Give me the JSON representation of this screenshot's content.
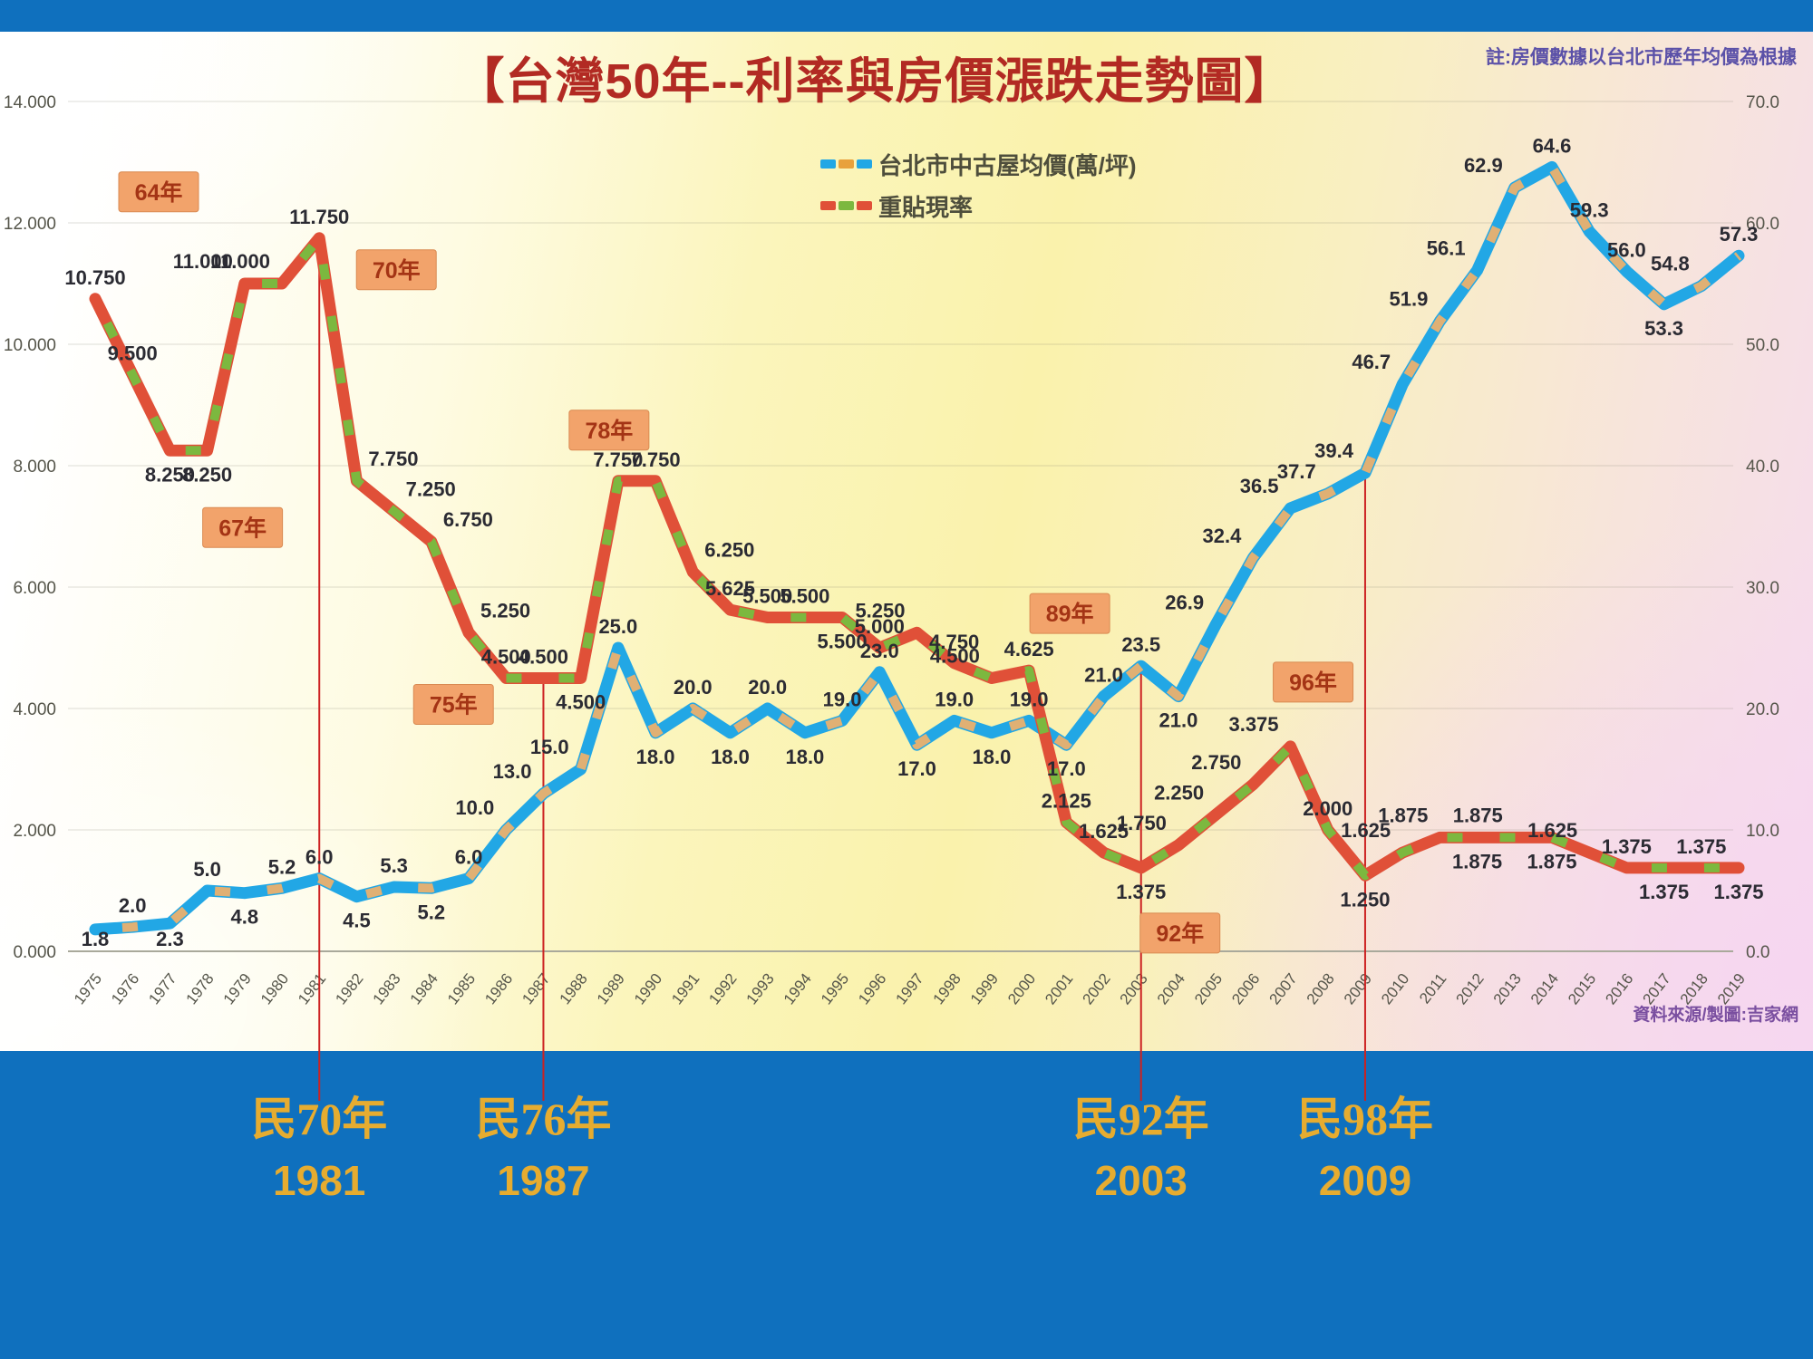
{
  "header": {
    "title": "【台灣50年--利率與房價漲跌走勢圖】",
    "top_right_note": "註:房價數據以台北市歷年均價為根據",
    "source_note": "資料來源/製圖:吉家網"
  },
  "legend": [
    {
      "label": "台北市中古屋均價(萬/坪)",
      "colors": [
        "#22A7E5",
        "#E8A13C",
        "#22A7E5"
      ]
    },
    {
      "label": "重貼現率",
      "colors": [
        "#E05038",
        "#7CB83F",
        "#E05038"
      ]
    }
  ],
  "chart_data": {
    "type": "line",
    "title": "【台灣50年--利率與房價漲跌走勢圖】",
    "x": [
      1975,
      1976,
      1977,
      1978,
      1979,
      1980,
      1981,
      1982,
      1983,
      1984,
      1985,
      1986,
      1987,
      1988,
      1989,
      1990,
      1991,
      1992,
      1993,
      1994,
      1995,
      1996,
      1997,
      1998,
      1999,
      2000,
      2001,
      2002,
      2003,
      2004,
      2005,
      2006,
      2007,
      2008,
      2009,
      2010,
      2011,
      2012,
      2013,
      2014,
      2015,
      2016,
      2017,
      2018,
      2019
    ],
    "axis_left": {
      "ticks": [
        "0.000",
        "2.000",
        "4.000",
        "6.000",
        "8.000",
        "10.000",
        "12.000",
        "14.000"
      ],
      "range": [
        0,
        14
      ]
    },
    "axis_right": {
      "ticks": [
        "0.0",
        "10.0",
        "20.0",
        "30.0",
        "40.0",
        "50.0",
        "60.0",
        "70.0"
      ],
      "range": [
        0,
        70
      ]
    },
    "grid": true,
    "legend_position": "top-center",
    "series": [
      {
        "id": "price",
        "name": "台北市中古屋均價(萬/坪)",
        "axis": "right",
        "color": "#22A7E5",
        "dash_color": "#E0B074",
        "values": [
          1.8,
          2.0,
          2.3,
          5.0,
          4.8,
          5.2,
          6.0,
          4.5,
          5.3,
          5.2,
          6.0,
          10.0,
          13.0,
          15.0,
          25.0,
          18.0,
          20.0,
          18.0,
          20.0,
          18.0,
          19.0,
          23.0,
          17.0,
          19.0,
          18.0,
          19.0,
          17.0,
          21.0,
          23.5,
          21.0,
          26.9,
          32.4,
          36.5,
          37.7,
          39.4,
          46.7,
          51.9,
          56.1,
          62.9,
          64.6,
          59.3,
          56.0,
          53.3,
          54.8,
          57.3
        ],
        "labels": [
          "1.8",
          "2.0",
          "2.3",
          "5.0",
          "4.8",
          "5.2",
          "6.0",
          "4.5",
          "5.3",
          "5.2",
          "6.0",
          "10.0",
          "13.0",
          "15.0",
          "25.0",
          "18.0",
          "20.0",
          "18.0",
          "20.0",
          "18.0",
          "19.0",
          "23.0",
          "17.0",
          "19.0",
          "18.0",
          "19.0",
          "17.0",
          "21.0",
          "23.5",
          "21.0",
          "26.9",
          "32.4",
          "36.5",
          "37.7",
          "39.4",
          "46.7",
          "51.9",
          "56.1",
          "62.9",
          "64.6",
          "59.3",
          "56.0",
          "53.3",
          "54.8",
          "57.3"
        ],
        "label_side": [
          "b",
          "a",
          "b",
          "a",
          "b",
          "a",
          "a",
          "b",
          "a",
          "b",
          "a",
          "l",
          "l",
          "l",
          "a",
          "b",
          "a",
          "b",
          "a",
          "b",
          "a",
          "a",
          "b",
          "a",
          "b",
          "a",
          "b",
          "a",
          "a",
          "b",
          "l",
          "l",
          "l",
          "l",
          "l",
          "l",
          "l",
          "l",
          "l",
          "a",
          "a",
          "a",
          "b",
          "l",
          "a"
        ]
      },
      {
        "id": "rate",
        "name": "重貼現率",
        "axis": "left",
        "color": "#E05038",
        "dash_color": "#7CB83F",
        "values": [
          10.75,
          9.5,
          8.25,
          8.25,
          11.0,
          11.0,
          11.75,
          7.75,
          7.25,
          6.75,
          5.25,
          4.5,
          4.5,
          4.5,
          7.75,
          7.75,
          6.25,
          5.625,
          5.5,
          5.5,
          5.5,
          5.0,
          5.25,
          4.75,
          4.5,
          4.625,
          2.125,
          1.625,
          1.375,
          1.75,
          2.25,
          2.75,
          3.375,
          2.0,
          1.25,
          1.625,
          1.875,
          1.875,
          1.875,
          1.875,
          1.625,
          1.375,
          1.375,
          1.375,
          1.375
        ],
        "labels": [
          "10.750",
          "9.500",
          "8.250",
          "8.250",
          "11.000",
          "11.000",
          "11.750",
          "7.750",
          "7.250",
          "6.750",
          "5.250",
          "4.500",
          "4.500",
          "4.500",
          "7.750",
          "7.750",
          "6.250",
          "5.625",
          "5.500",
          "5.500",
          "5.500",
          "5.000",
          "5.250",
          "4.750",
          "4.500",
          "4.625",
          "2.125",
          "1.625",
          "1.375",
          "1.750",
          "2.250",
          "2.750",
          "3.375",
          "2.000",
          "1.250",
          "1.625",
          "1.875",
          "1.875",
          "1.875",
          "1.875",
          "1.625",
          "1.375",
          "1.375",
          "1.375",
          "1.375"
        ],
        "label_side": [
          "a",
          "a",
          "b",
          "b",
          "l",
          "l",
          "a",
          "r",
          "r",
          "r",
          "r",
          "a",
          "a",
          "b",
          "a",
          "a",
          "r",
          "a",
          "a",
          "a",
          "b",
          "a",
          "l",
          "a",
          "l",
          "a",
          "a",
          "a",
          "b",
          "l",
          "l",
          "l",
          "l",
          "a",
          "b",
          "l",
          "l",
          "b",
          "l",
          "b",
          "l",
          "a",
          "b",
          "a",
          "b"
        ]
      }
    ],
    "year_boxes": [
      {
        "label": "64年",
        "year": 1975
      },
      {
        "label": "67年",
        "year": 1978
      },
      {
        "label": "70年",
        "year": 1981
      },
      {
        "label": "75年",
        "year": 1986
      },
      {
        "label": "78年",
        "year": 1989
      },
      {
        "label": "89年",
        "year": 2000
      },
      {
        "label": "92年",
        "year": 2003
      },
      {
        "label": "96年",
        "year": 2007
      }
    ],
    "marker_lines": [
      {
        "year": 1981
      },
      {
        "year": 1987
      },
      {
        "year": 2003
      },
      {
        "year": 2009
      }
    ]
  },
  "band": {
    "markers": [
      {
        "roc": "民70年",
        "year": "1981"
      },
      {
        "roc": "民76年",
        "year": "1987"
      },
      {
        "roc": "民92年",
        "year": "2003"
      },
      {
        "roc": "民98年",
        "year": "2009"
      }
    ]
  },
  "colors": {
    "band_blue": "#0F70BE",
    "golden_text": "#E6AC30",
    "title_red": "#B22A23",
    "year_box_fill": "#F2A36B",
    "marker_line_red": "#CC2222"
  }
}
